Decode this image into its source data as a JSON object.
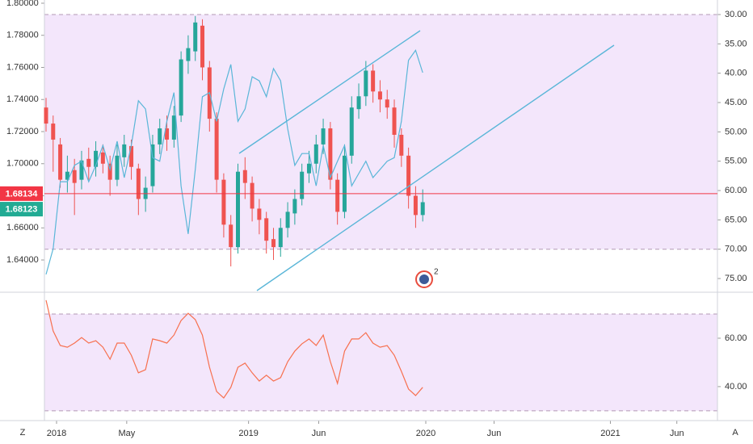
{
  "chart_data": [
    {
      "type": "candlestick",
      "xlim": [
        2017.9343,
        2021.58
      ],
      "xticks": [
        {
          "value": 2018,
          "label": "2018"
        },
        {
          "value": 2018.38,
          "label": "May"
        },
        {
          "value": 2019.04,
          "label": "2019"
        },
        {
          "value": 2019.42,
          "label": "Jun"
        },
        {
          "value": 2020,
          "label": "2020"
        },
        {
          "value": 2020.37,
          "label": "Jun"
        },
        {
          "value": 2021,
          "label": "2021"
        },
        {
          "value": 2021.36,
          "label": "Jun"
        }
      ],
      "ylim": [
        1.6209,
        1.802
      ],
      "yticks": [
        {
          "value": 1.64,
          "label": "1.64000"
        },
        {
          "value": 1.66,
          "label": "1.66000"
        },
        {
          "value": 1.68,
          "label": "1.68000"
        },
        {
          "value": 1.7,
          "label": "1.70000"
        },
        {
          "value": 1.72,
          "label": "1.72000"
        },
        {
          "value": 1.74,
          "label": "1.74000"
        },
        {
          "value": 1.76,
          "label": "1.76000"
        },
        {
          "value": 1.78,
          "label": "1.78000"
        },
        {
          "value": 1.8,
          "label": "1.80000"
        }
      ],
      "y2lim": [
        77.06,
        27.52
      ],
      "y2ticks": [
        {
          "value": 30,
          "label": "30.00"
        },
        {
          "value": 35,
          "label": "35.00"
        },
        {
          "value": 40,
          "label": "40.00"
        },
        {
          "value": 45,
          "label": "45.00"
        },
        {
          "value": 50,
          "label": "50.00"
        },
        {
          "value": 55,
          "label": "55.00"
        },
        {
          "value": 60,
          "label": "60.00"
        },
        {
          "value": 65,
          "label": "65.00"
        },
        {
          "value": 70,
          "label": "70.00"
        },
        {
          "value": 75,
          "label": "75.00"
        }
      ],
      "y2band": [
        30,
        70
      ],
      "color_up": "#26a69a",
      "color_down": "#ef5350",
      "x": [
        2017.943,
        2017.9815,
        2018.02,
        2018.0585,
        2018.097,
        2018.1355,
        2018.174,
        2018.2125,
        2018.251,
        2018.2895,
        2018.328,
        2018.3665,
        2018.405,
        2018.4435,
        2018.482,
        2018.5205,
        2018.559,
        2018.5975,
        2018.636,
        2018.6745,
        2018.713,
        2018.7515,
        2018.79,
        2018.8285,
        2018.867,
        2018.9055,
        2018.944,
        2018.9825,
        2019.021,
        2019.0595,
        2019.098,
        2019.1365,
        2019.175,
        2019.2135,
        2019.252,
        2019.2905,
        2019.329,
        2019.3675,
        2019.406,
        2019.4445,
        2019.483,
        2019.5215,
        2019.56,
        2019.5985,
        2019.637,
        2019.6755,
        2019.714,
        2019.7525,
        2019.791,
        2019.8295,
        2019.868,
        2019.9065,
        2019.945,
        2019.9835
      ],
      "open": [
        1.735,
        1.725,
        1.712,
        1.69,
        1.696,
        1.69,
        1.703,
        1.698,
        1.707,
        1.7,
        1.69,
        1.704,
        1.711,
        1.697,
        1.678,
        1.686,
        1.712,
        1.722,
        1.715,
        1.73,
        1.764,
        1.77,
        1.786,
        1.76,
        1.728,
        1.69,
        1.662,
        1.648,
        1.696,
        1.688,
        1.672,
        1.666,
        1.653,
        1.648,
        1.66,
        1.669,
        1.678,
        1.694,
        1.7,
        1.712,
        1.722,
        1.69,
        1.67,
        1.705,
        1.734,
        1.742,
        1.758,
        1.745,
        1.74,
        1.735,
        1.718,
        1.705,
        1.68,
        1.668
      ],
      "high": [
        1.741,
        1.73,
        1.716,
        1.705,
        1.703,
        1.708,
        1.71,
        1.714,
        1.712,
        1.705,
        1.712,
        1.718,
        1.715,
        1.7,
        1.692,
        1.718,
        1.728,
        1.73,
        1.736,
        1.77,
        1.78,
        1.792,
        1.79,
        1.764,
        1.732,
        1.694,
        1.668,
        1.7,
        1.704,
        1.692,
        1.678,
        1.67,
        1.66,
        1.666,
        1.676,
        1.684,
        1.7,
        1.708,
        1.718,
        1.728,
        1.726,
        1.694,
        1.712,
        1.742,
        1.75,
        1.764,
        1.762,
        1.752,
        1.746,
        1.74,
        1.722,
        1.71,
        1.686,
        1.684
      ],
      "low": [
        1.72,
        1.695,
        1.685,
        1.682,
        1.668,
        1.684,
        1.69,
        1.692,
        1.694,
        1.68,
        1.686,
        1.698,
        1.69,
        1.668,
        1.67,
        1.682,
        1.706,
        1.708,
        1.71,
        1.726,
        1.756,
        1.764,
        1.752,
        1.72,
        1.682,
        1.654,
        1.636,
        1.644,
        1.678,
        1.664,
        1.656,
        1.644,
        1.64,
        1.642,
        1.654,
        1.662,
        1.674,
        1.688,
        1.694,
        1.706,
        1.684,
        1.662,
        1.666,
        1.7,
        1.728,
        1.736,
        1.738,
        1.732,
        1.728,
        1.71,
        1.698,
        1.672,
        1.66,
        1.664
      ],
      "close": [
        1.725,
        1.715,
        1.69,
        1.695,
        1.688,
        1.702,
        1.698,
        1.708,
        1.7,
        1.69,
        1.705,
        1.712,
        1.698,
        1.678,
        1.685,
        1.712,
        1.722,
        1.715,
        1.73,
        1.765,
        1.772,
        1.788,
        1.76,
        1.728,
        1.69,
        1.662,
        1.648,
        1.695,
        1.688,
        1.672,
        1.665,
        1.652,
        1.648,
        1.66,
        1.67,
        1.678,
        1.695,
        1.7,
        1.712,
        1.722,
        1.69,
        1.67,
        1.705,
        1.735,
        1.742,
        1.758,
        1.745,
        1.74,
        1.735,
        1.718,
        1.705,
        1.68,
        1.668,
        1.676
      ],
      "series": [
        {
          "color": "#5ab6d8",
          "axis": "y2",
          "values": [
            74.3,
            69.9,
            58.5,
            58.5,
            55.7,
            55.0,
            58.5,
            55.7,
            52.3,
            56.4,
            51.6,
            57.8,
            52.3,
            44.7,
            46.1,
            54.4,
            55.0,
            48.2,
            43.3,
            59.2,
            67.4,
            56.4,
            44.0,
            43.3,
            48.2,
            42.7,
            38.5,
            48.2,
            46.1,
            40.6,
            41.3,
            44.0,
            39.2,
            41.3,
            49.5,
            55.7,
            53.7,
            53.7,
            59.2,
            52.3,
            57.8,
            55.0,
            52.3,
            59.2,
            57.1,
            55.0,
            57.8,
            56.4,
            55.0,
            54.4,
            48.2,
            37.8,
            36.1,
            39.9
          ]
        }
      ],
      "price_lines": [
        {
          "value": 1.68134,
          "label": "1.68134",
          "color": "#f23645"
        },
        {
          "value": 1.68123,
          "label": "1.68123",
          "color": "#22ab94"
        }
      ]
    },
    {
      "type": "line",
      "ylim": [
        26.3,
        78
      ],
      "yticks": [
        {
          "value": 40,
          "label": "40.00"
        },
        {
          "value": 60,
          "label": "60.00"
        }
      ],
      "band": [
        30,
        70
      ],
      "series": [
        {
          "color": "#f7704f",
          "values": [
            75.7,
            63.0,
            57.0,
            56.3,
            58.0,
            60.3,
            58.0,
            59.0,
            56.3,
            51.3,
            58.0,
            58.0,
            53.0,
            45.7,
            47.0,
            59.7,
            59.0,
            58.0,
            61.3,
            67.3,
            70.3,
            67.7,
            61.3,
            48.0,
            38.0,
            35.3,
            39.7,
            48.0,
            49.7,
            45.7,
            42.3,
            44.7,
            42.3,
            43.7,
            50.3,
            54.7,
            57.7,
            59.7,
            57.0,
            61.3,
            50.3,
            41.3,
            54.7,
            59.7,
            59.7,
            62.3,
            58.0,
            56.3,
            57.0,
            53.0,
            46.3,
            39.0,
            36.3,
            39.7
          ]
        }
      ]
    }
  ],
  "events": {
    "count": 2
  },
  "toolbar": {
    "left": "Z",
    "right": "A"
  }
}
